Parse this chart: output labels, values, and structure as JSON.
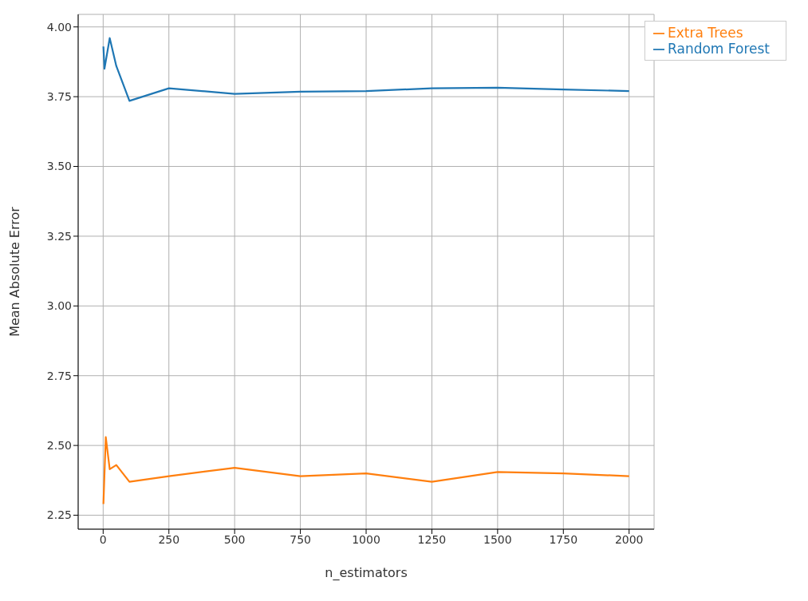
{
  "chart_data": {
    "type": "line",
    "xlabel": "n_estimators",
    "ylabel": "Mean Absolute Error",
    "xlim": [
      -95,
      2095
    ],
    "xticks": [
      0,
      250,
      500,
      750,
      1000,
      1250,
      1500,
      1750,
      2000
    ],
    "ylim": [
      2.2,
      4.045
    ],
    "yticks": [
      {
        "value": 2.25,
        "label": "2.25"
      },
      {
        "value": 2.5,
        "label": "2.50"
      },
      {
        "value": 2.75,
        "label": "2.75"
      },
      {
        "value": 3,
        "label": "3.00"
      },
      {
        "value": 3.25,
        "label": "3.25"
      },
      {
        "value": 3.5,
        "label": "3.50"
      },
      {
        "value": 3.75,
        "label": "3.75"
      },
      {
        "value": 4,
        "label": "4.00"
      }
    ],
    "grid": true,
    "legend": "top right",
    "marker": "none",
    "line_style": "solid",
    "x": [
      1,
      5,
      25,
      50,
      100,
      250,
      500,
      750,
      1000,
      1250,
      1500,
      1750,
      2000
    ],
    "series": [
      {
        "name": "Random Forest",
        "color": "#1f77b4",
        "values": [
          3.93,
          3.85,
          3.96,
          3.86,
          3.735,
          3.78,
          3.76,
          3.768,
          3.77,
          3.78,
          3.782,
          3.776,
          3.77
        ]
      },
      {
        "name": "Extra Trees",
        "color": "#ff7f0e",
        "x": [
          1,
          10,
          25,
          50,
          100,
          250,
          500,
          750,
          1000,
          1250,
          1500,
          1750,
          2000
        ],
        "values": [
          2.29,
          2.53,
          2.415,
          2.43,
          2.37,
          2.39,
          2.42,
          2.39,
          2.4,
          2.37,
          2.405,
          2.4,
          2.39
        ]
      }
    ]
  }
}
